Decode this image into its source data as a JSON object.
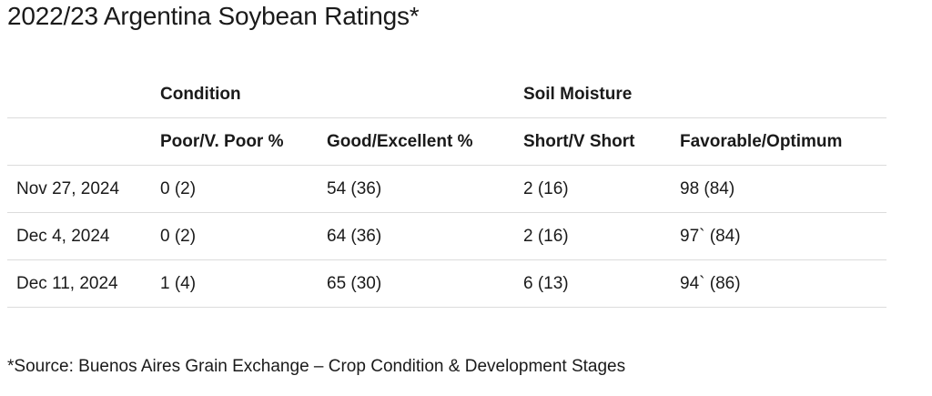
{
  "title": "2022/23 Argentina Soybean Ratings*",
  "table": {
    "group_headers": {
      "condition": "Condition",
      "soil_moisture": "Soil Moisture"
    },
    "column_headers": [
      "",
      "Poor/V. Poor %",
      "Good/Excellent %",
      "Short/V Short",
      "Favorable/Optimum"
    ],
    "rows": [
      [
        "Nov 27, 2024",
        "0 (2)",
        "54 (36)",
        "2 (16)",
        "98 (84)"
      ],
      [
        "Dec 4, 2024",
        "0 (2)",
        "64 (36)",
        "2 (16)",
        "97` (84)"
      ],
      [
        "Dec 11, 2024",
        "1 (4)",
        "65 (30)",
        "6 (13)",
        "94` (86)"
      ]
    ]
  },
  "footnote": "*Source: Buenos Aires Grain Exchange – Crop Condition & Development Stages"
}
